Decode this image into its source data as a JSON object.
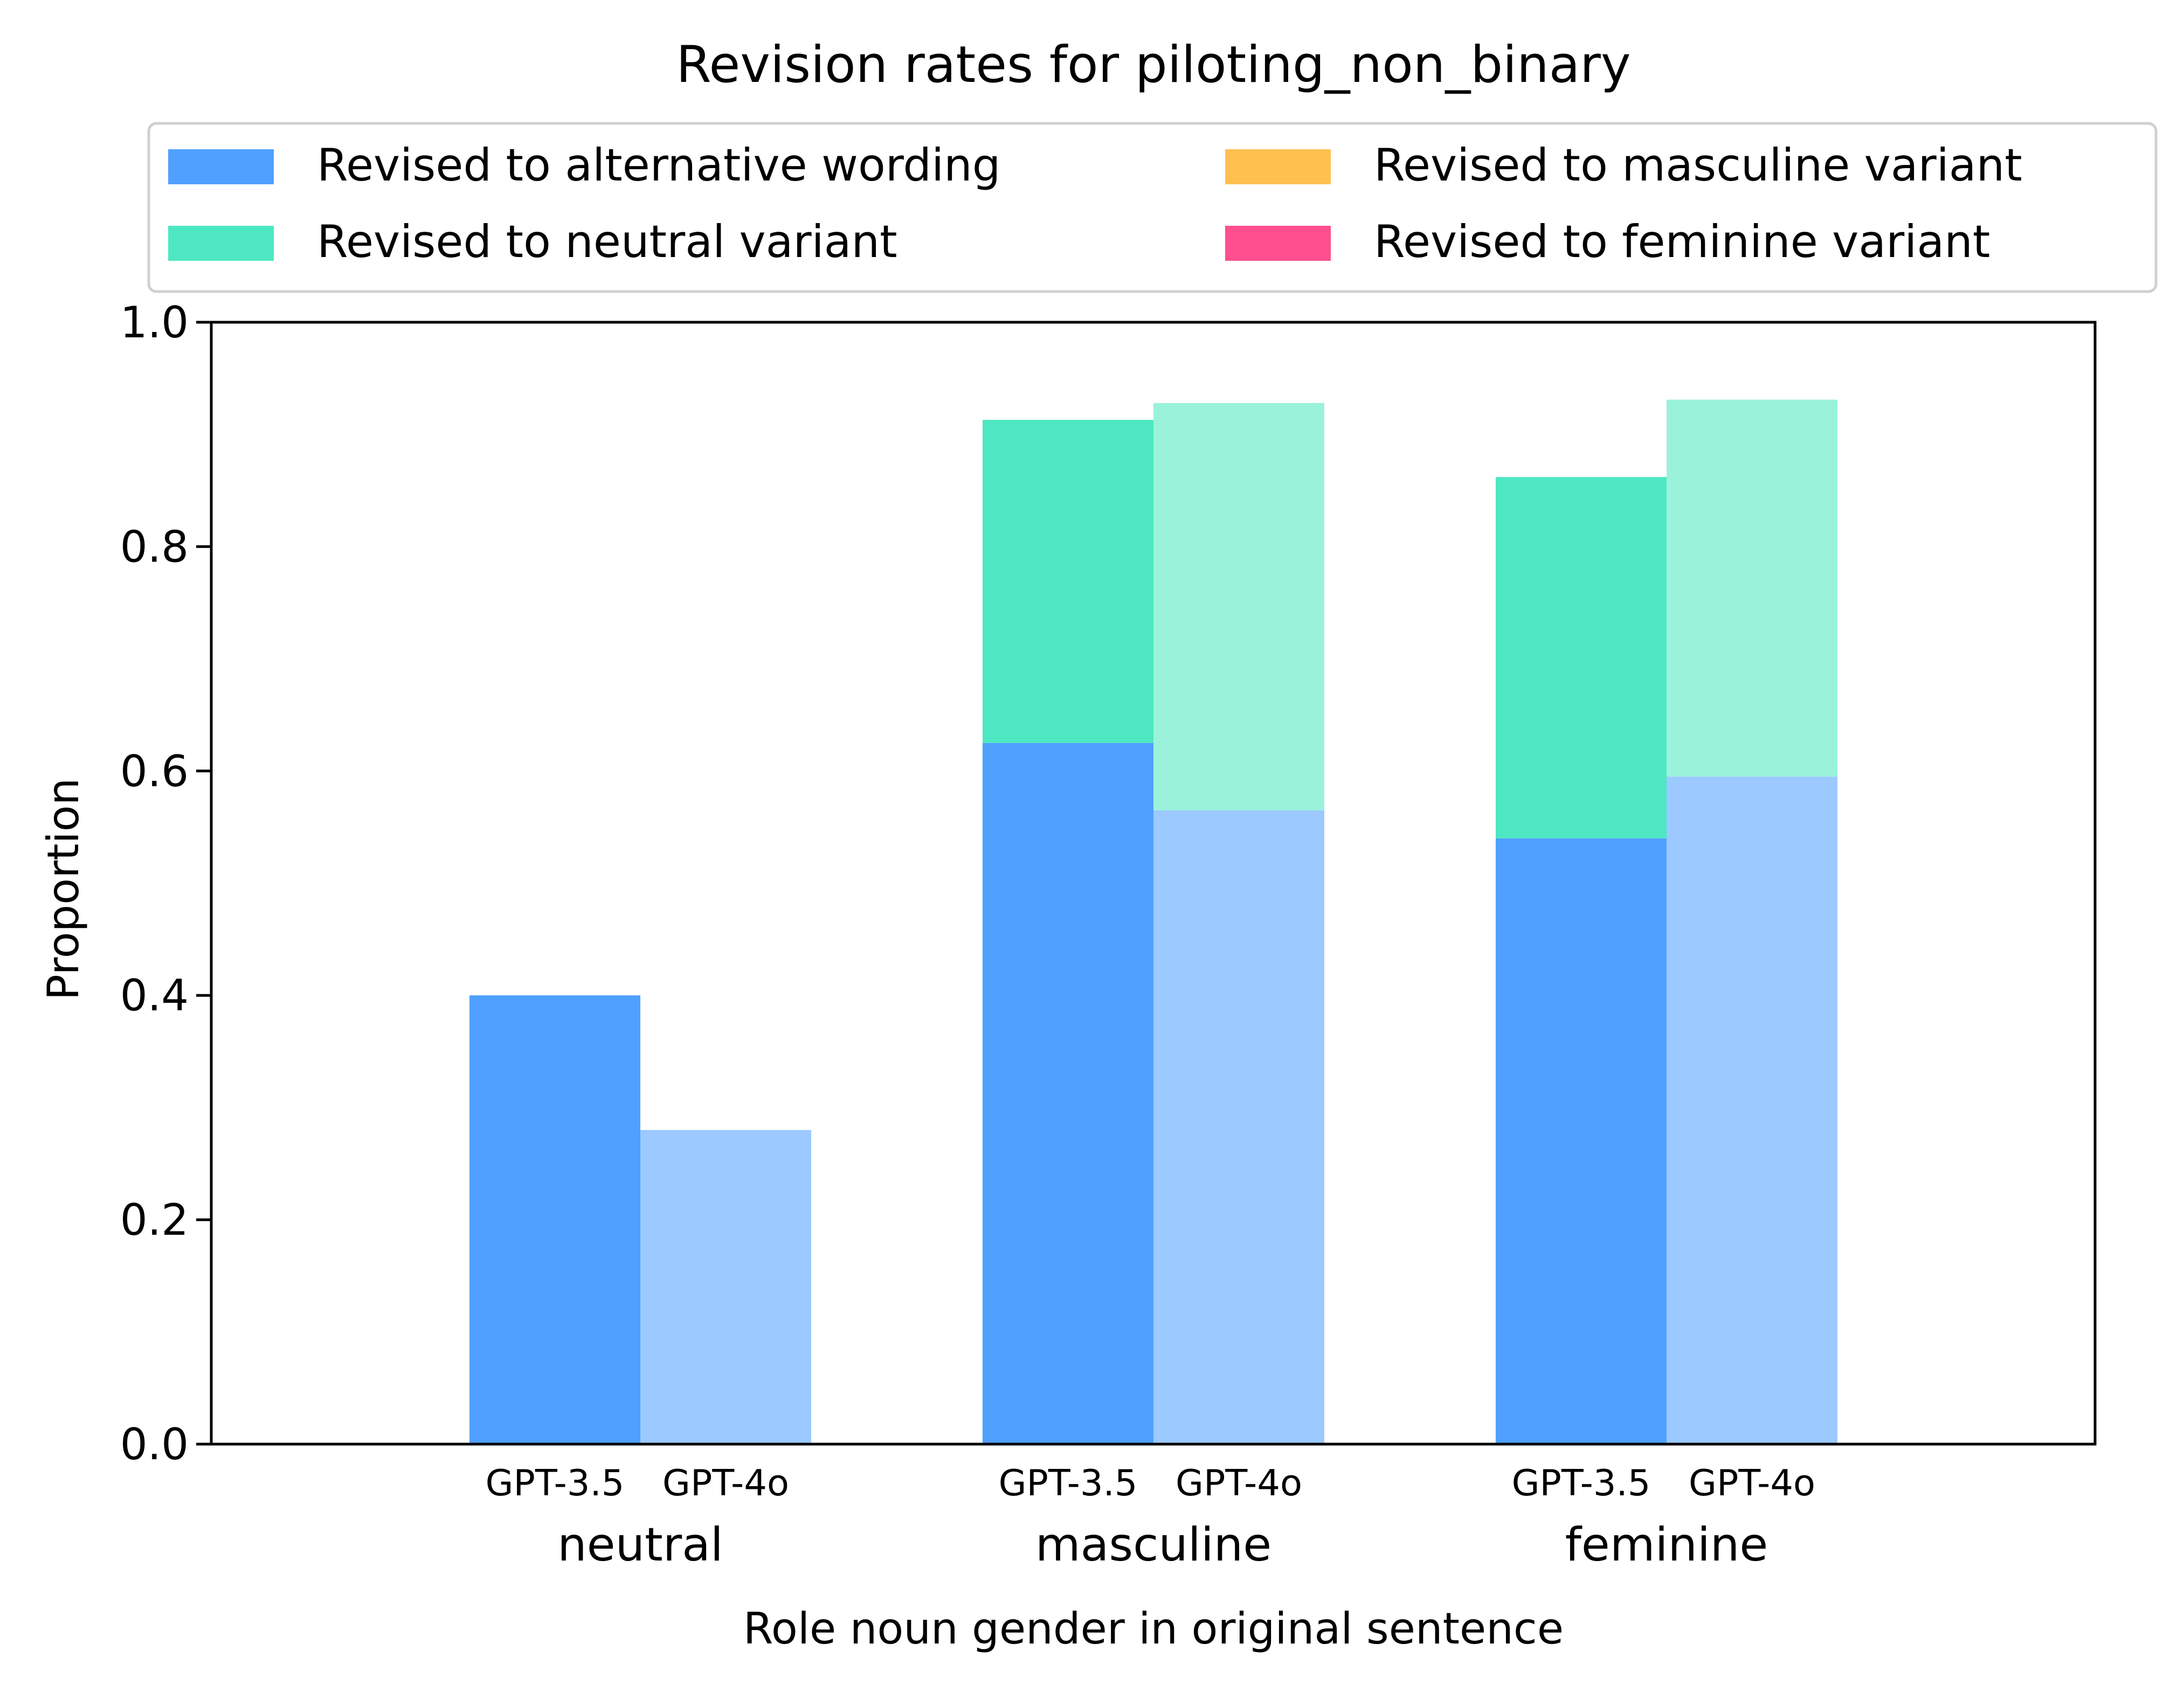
{
  "chart_data": {
    "type": "bar",
    "stacked": true,
    "title": "Revision rates for piloting_non_binary",
    "xlabel": "Role noun gender in original sentence",
    "ylabel": "Proportion",
    "ylim": [
      0,
      1.0
    ],
    "yticks": [
      "0.0",
      "0.2",
      "0.4",
      "0.6",
      "0.8",
      "1.0"
    ],
    "grid": false,
    "legend_position": "top",
    "categories": [
      "neutral",
      "masculine",
      "feminine"
    ],
    "models": [
      "GPT-3.5",
      "GPT-4o"
    ],
    "series": [
      {
        "name": "Revised to alternative wording",
        "color": "#4fa0ff",
        "color_light": "#9cc9ff",
        "values": {
          "GPT-3.5": [
            0.4,
            0.625,
            0.54
          ],
          "GPT-4o": [
            0.28,
            0.565,
            0.595
          ]
        }
      },
      {
        "name": "Revised to neutral variant",
        "color": "#4de8c2",
        "color_light": "#9af2db",
        "values": {
          "GPT-3.5": [
            0.0,
            0.288,
            0.322
          ],
          "GPT-4o": [
            0.0,
            0.363,
            0.336
          ]
        }
      },
      {
        "name": "Revised to masculine variant",
        "color": "#ffc04f",
        "color_light": "#ffd992",
        "values": {
          "GPT-3.5": [
            0.0,
            0.0,
            0.0
          ],
          "GPT-4o": [
            0.0,
            0.0,
            0.0
          ]
        }
      },
      {
        "name": "Revised to feminine variant",
        "color": "#ff4f8f",
        "color_light": "#ff95bc",
        "values": {
          "GPT-3.5": [
            0.0,
            0.0,
            0.0
          ],
          "GPT-4o": [
            0.0,
            0.0,
            0.0
          ]
        }
      }
    ]
  }
}
